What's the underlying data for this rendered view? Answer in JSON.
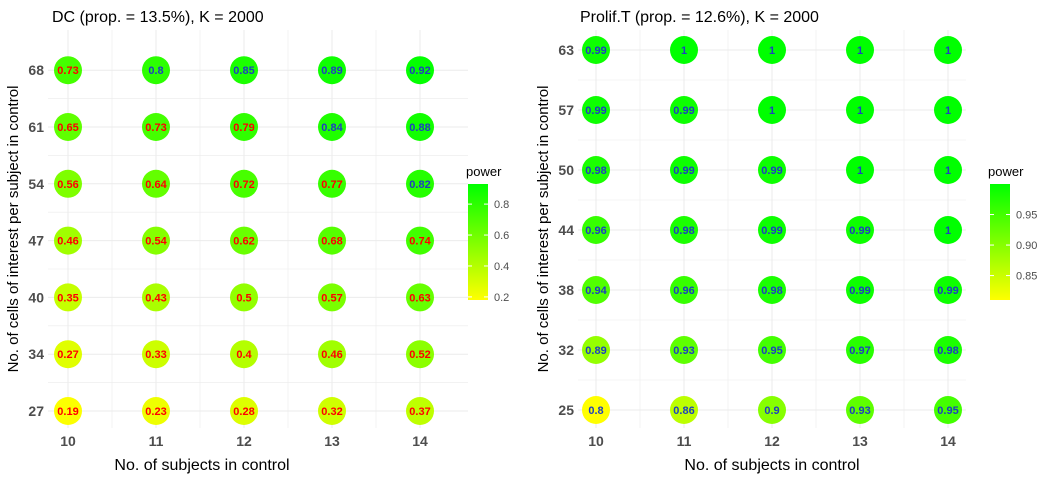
{
  "chart_data": [
    {
      "type": "heatmap",
      "title": "DC (prop. = 13.5%), K = 2000",
      "xlabel": "No. of subjects in control",
      "ylabel": "No. of cells of interest per subject in control",
      "x": [
        "10",
        "11",
        "12",
        "13",
        "14"
      ],
      "y": [
        "27",
        "34",
        "40",
        "47",
        "54",
        "61",
        "68"
      ],
      "values": [
        [
          0.19,
          0.23,
          0.28,
          0.32,
          0.37
        ],
        [
          0.27,
          0.33,
          0.4,
          0.46,
          0.52
        ],
        [
          0.35,
          0.43,
          0.5,
          0.57,
          0.63
        ],
        [
          0.46,
          0.54,
          0.62,
          0.68,
          0.74
        ],
        [
          0.56,
          0.64,
          0.72,
          0.77,
          0.82
        ],
        [
          0.65,
          0.73,
          0.79,
          0.84,
          0.88
        ],
        [
          0.73,
          0.8,
          0.85,
          0.89,
          0.92
        ]
      ],
      "labels": [
        [
          "0.19",
          "0.23",
          "0.28",
          "0.32",
          "0.37"
        ],
        [
          "0.27",
          "0.33",
          "0.4",
          "0.46",
          "0.52"
        ],
        [
          "0.35",
          "0.43",
          "0.5",
          "0.57",
          "0.63"
        ],
        [
          "0.46",
          "0.54",
          "0.62",
          "0.68",
          "0.74"
        ],
        [
          "0.56",
          "0.64",
          "0.72",
          "0.77",
          "0.82"
        ],
        [
          "0.65",
          "0.73",
          "0.79",
          "0.84",
          "0.88"
        ],
        [
          "0.73",
          "0.8",
          "0.85",
          "0.89",
          "0.92"
        ]
      ],
      "legend": {
        "title": "power",
        "position": "right",
        "colorbar_range": [
          0.18,
          0.93
        ],
        "ticks": [
          0.2,
          0.4,
          0.6,
          0.8
        ],
        "tick_labels": [
          "0.2",
          "0.4",
          "0.6",
          "0.8"
        ]
      },
      "label_color_threshold": 0.8,
      "grid": true
    },
    {
      "type": "heatmap",
      "title": "Prolif.T (prop. = 12.6%), K = 2000",
      "xlabel": "No. of subjects in control",
      "ylabel": "No. of cells of interest per subject in control",
      "x": [
        "10",
        "11",
        "12",
        "13",
        "14"
      ],
      "y": [
        "25",
        "32",
        "38",
        "44",
        "50",
        "57",
        "63"
      ],
      "values": [
        [
          0.8,
          0.86,
          0.9,
          0.93,
          0.95
        ],
        [
          0.89,
          0.93,
          0.95,
          0.97,
          0.98
        ],
        [
          0.94,
          0.96,
          0.98,
          0.99,
          0.99
        ],
        [
          0.96,
          0.98,
          0.99,
          0.99,
          1
        ],
        [
          0.98,
          0.99,
          0.99,
          1,
          1
        ],
        [
          0.99,
          0.99,
          1,
          1,
          1
        ],
        [
          0.99,
          1,
          1,
          1,
          1
        ]
      ],
      "labels": [
        [
          "0.8",
          "0.86",
          "0.9",
          "0.93",
          "0.95"
        ],
        [
          "0.89",
          "0.93",
          "0.95",
          "0.97",
          "0.98"
        ],
        [
          "0.94",
          "0.96",
          "0.98",
          "0.99",
          "0.99"
        ],
        [
          "0.96",
          "0.98",
          "0.99",
          "0.99",
          "1"
        ],
        [
          "0.98",
          "0.99",
          "0.99",
          "1",
          "1"
        ],
        [
          "0.99",
          "0.99",
          "1",
          "1",
          "1"
        ],
        [
          "0.99",
          "1",
          "1",
          "1",
          "1"
        ]
      ],
      "legend": {
        "title": "power",
        "position": "right",
        "colorbar_range": [
          0.81,
          1.0
        ],
        "ticks": [
          0.85,
          0.9,
          0.95
        ],
        "tick_labels": [
          "0.85",
          "0.90",
          "0.95"
        ]
      },
      "label_color_threshold": 0.8,
      "grid": true
    }
  ],
  "colors": {
    "scale_low": "#ffff00",
    "scale_high": "#00ff00",
    "label_low": "#ff0000",
    "label_high": "#1f3fbf",
    "grid": "#ebebeb",
    "text": "#000000",
    "tick_text": "#4d4d4d"
  }
}
